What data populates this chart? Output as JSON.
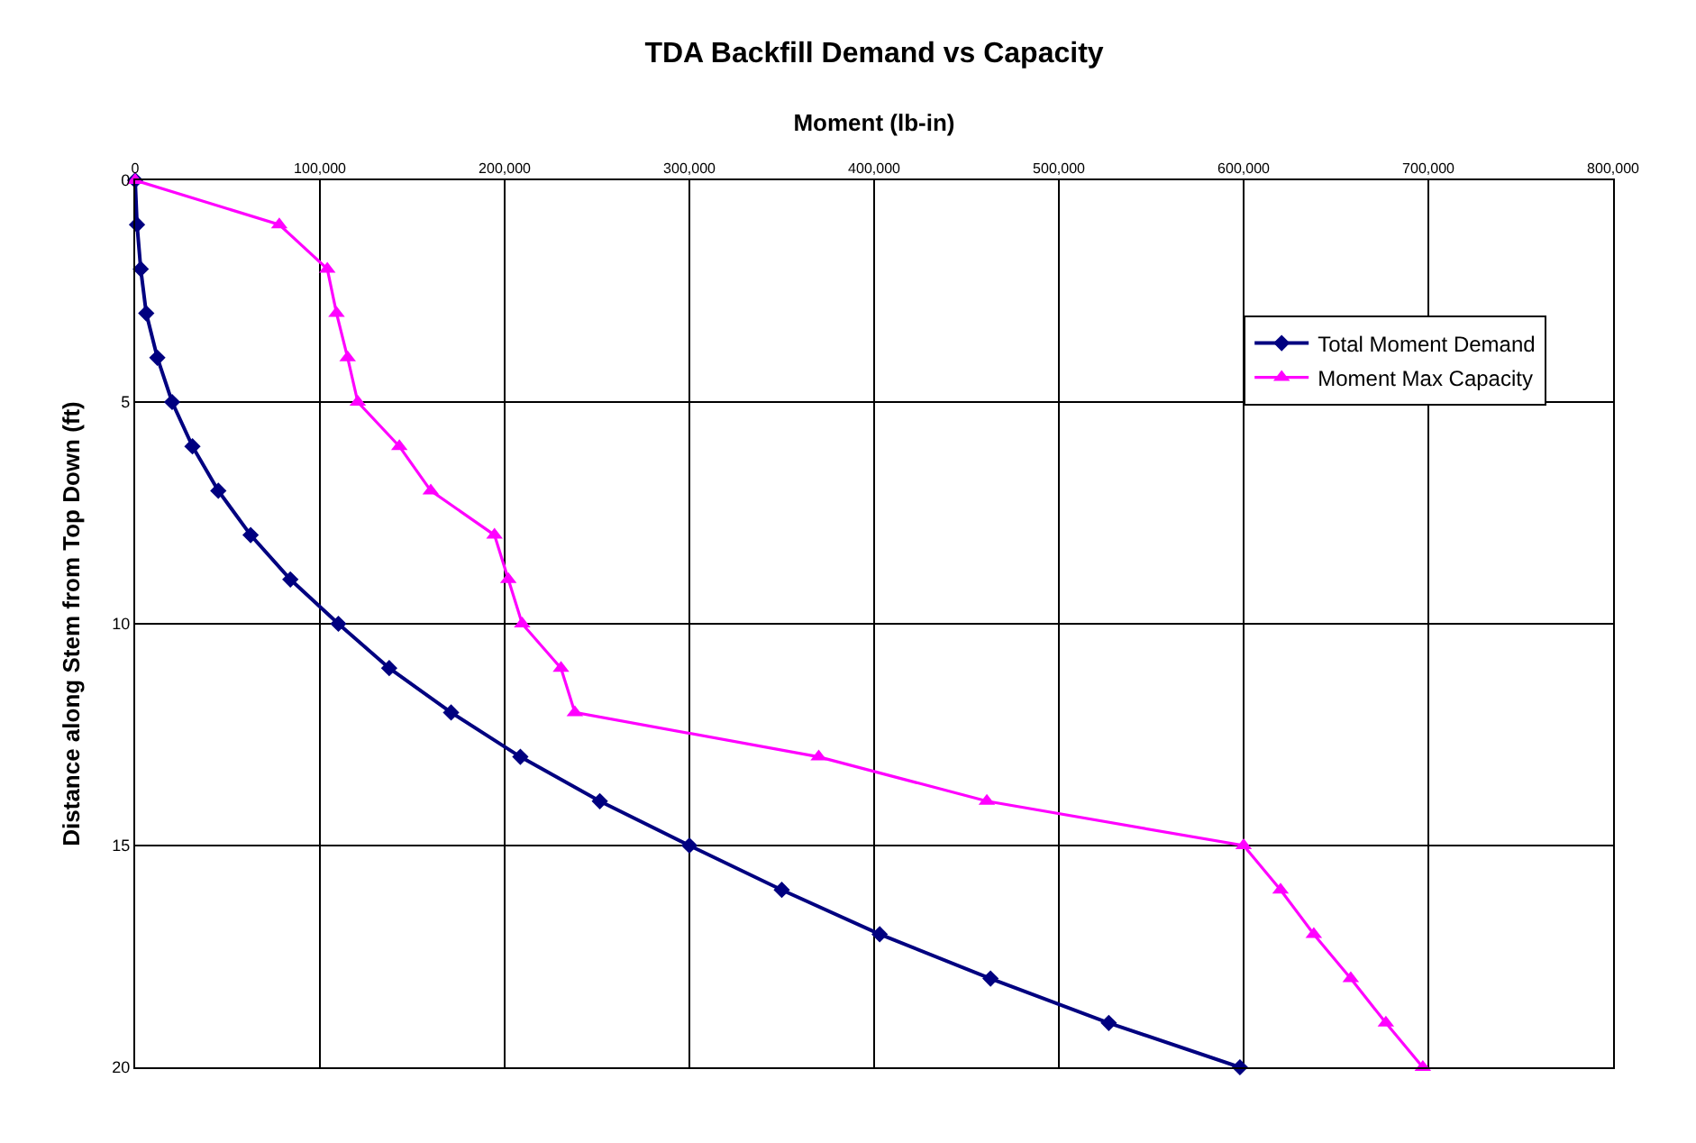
{
  "chart_data": {
    "type": "line",
    "title": "TDA Backfill Demand vs Capacity",
    "xlabel": "Moment (lb-in)",
    "ylabel": "Distance along Stem from Top Down (ft)",
    "series": [
      {
        "name": "Total Moment Demand",
        "color": "#000080",
        "marker": "diamond",
        "x": [
          0,
          1000,
          3000,
          6000,
          12000,
          20000,
          31000,
          45000,
          62500,
          84000,
          110000,
          137500,
          171000,
          208500,
          251500,
          300000,
          350000,
          403000,
          463000,
          527000,
          598000
        ],
        "values": [
          0,
          1,
          2,
          3,
          4,
          5,
          6,
          7,
          8,
          9,
          10,
          11,
          12,
          13,
          14,
          15,
          16,
          17,
          18,
          19,
          20
        ]
      },
      {
        "name": "Moment Max Capacity",
        "color": "#ff00ff",
        "marker": "triangle",
        "x": [
          0,
          78000,
          104000,
          109000,
          115000,
          120500,
          143000,
          160000,
          194500,
          202000,
          209500,
          230500,
          238000,
          370000,
          461000,
          600000,
          620000,
          638000,
          658000,
          677000,
          697000
        ],
        "values": [
          0,
          1,
          2,
          3,
          4,
          5,
          6,
          7,
          8,
          9,
          10,
          11,
          12,
          13,
          14,
          15,
          16,
          17,
          18,
          19,
          20
        ]
      }
    ],
    "xlim": [
      0,
      800000
    ],
    "xticks": [
      0,
      {
        "value": 100000,
        "label": "100,000"
      },
      {
        "value": 200000,
        "label": "200,000"
      },
      {
        "value": 300000,
        "label": "300,000"
      },
      {
        "value": 400000,
        "label": "400,000"
      },
      {
        "value": 500000,
        "label": "500,000"
      },
      {
        "value": 600000,
        "label": "600,000"
      },
      {
        "value": 700000,
        "label": "700,000"
      },
      {
        "value": 800000,
        "label": "800,000"
      }
    ],
    "ylim": [
      20,
      0
    ],
    "yticks": [
      0,
      5,
      10,
      15,
      20
    ],
    "grid": true,
    "legend": "top right",
    "line_style": "solid"
  }
}
